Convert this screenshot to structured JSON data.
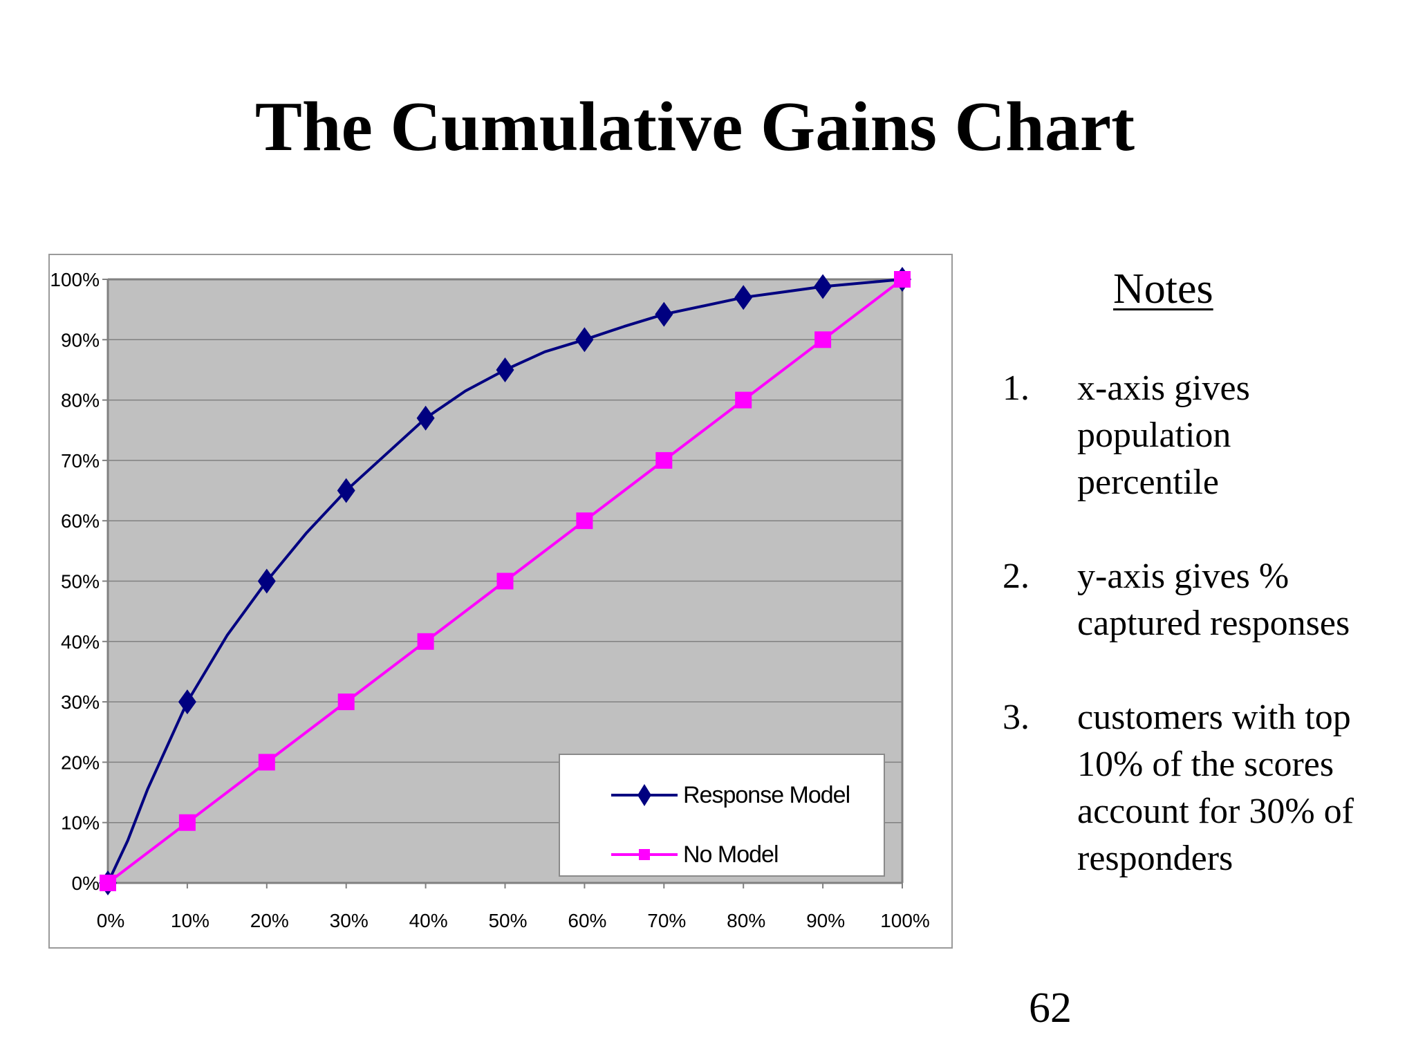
{
  "slide": {
    "title": "The Cumulative Gains Chart",
    "page_number": "62"
  },
  "notes": {
    "heading": "Notes",
    "items": [
      {
        "number": "1.",
        "text": "x-axis gives population percentile"
      },
      {
        "number": "2.",
        "text": "y-axis gives % captured responses"
      },
      {
        "number": "3.",
        "text": "customers with top 10% of the scores account for 30% of responders"
      }
    ]
  },
  "legend": {
    "items": [
      {
        "label": "Response Model",
        "marker": "diamond",
        "color": "#000080"
      },
      {
        "label": "No Model",
        "marker": "square",
        "color": "#ff00ff"
      }
    ]
  },
  "chart_data": {
    "type": "line",
    "title": "",
    "xlabel": "",
    "ylabel": "",
    "xlim": [
      0,
      100
    ],
    "ylim": [
      0,
      100
    ],
    "grid": true,
    "plot_background": "#c0c0c0",
    "legend_position": "bottom-right",
    "x_tick_labels": [
      "0%",
      "10%",
      "20%",
      "30%",
      "40%",
      "50%",
      "60%",
      "70%",
      "80%",
      "90%",
      "100%"
    ],
    "y_tick_labels": [
      "0%",
      "10%",
      "20%",
      "30%",
      "40%",
      "50%",
      "60%",
      "70%",
      "80%",
      "90%",
      "100%"
    ],
    "series": [
      {
        "name": "Response Model",
        "color": "#000080",
        "marker": "diamond",
        "x": [
          0,
          2.5,
          5,
          10,
          15,
          20,
          25,
          30,
          35,
          40,
          45,
          50,
          55,
          60,
          65,
          70,
          80,
          90,
          100
        ],
        "y": [
          0,
          7,
          15.5,
          30,
          41,
          50,
          58,
          65,
          71,
          77,
          81.5,
          85,
          88,
          90,
          92.2,
          94.2,
          97,
          98.8,
          100
        ],
        "marker_x": [
          0,
          10,
          20,
          30,
          40,
          50,
          60,
          70,
          80,
          90,
          100
        ]
      },
      {
        "name": "No Model",
        "color": "#ff00ff",
        "marker": "square",
        "x": [
          0,
          10,
          20,
          30,
          40,
          50,
          60,
          70,
          80,
          90,
          100
        ],
        "y": [
          0,
          10,
          20,
          30,
          40,
          50,
          60,
          70,
          80,
          90,
          100
        ],
        "marker_x": [
          0,
          10,
          20,
          30,
          40,
          50,
          60,
          70,
          80,
          90,
          100
        ]
      }
    ]
  }
}
